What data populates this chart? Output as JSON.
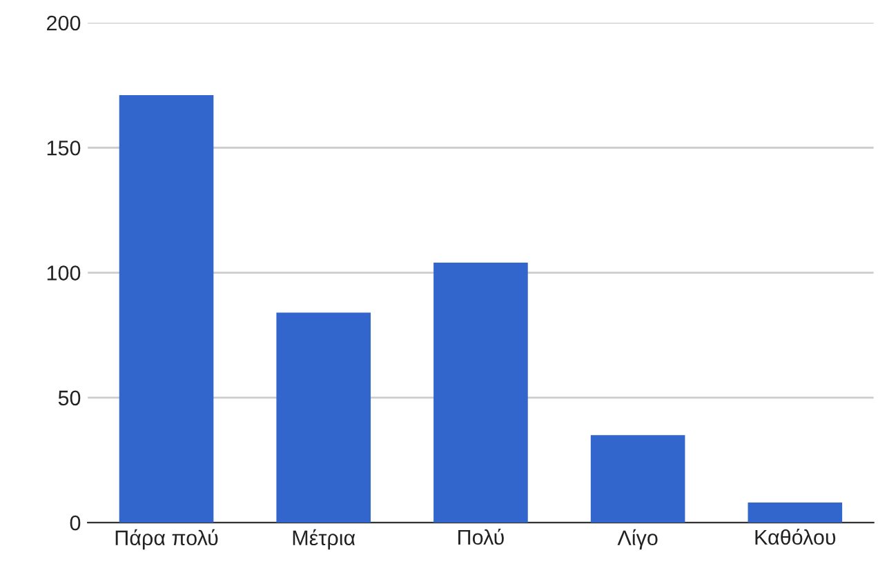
{
  "chart_data": {
    "type": "bar",
    "categories": [
      "Πάρα πολύ",
      "Μέτρια",
      "Πολύ",
      "Λίγο",
      "Καθόλου"
    ],
    "values": [
      171,
      84,
      104,
      35,
      8
    ],
    "color": "#3366cc",
    "ylim": [
      0,
      200
    ],
    "yticks": [
      0,
      50,
      100,
      150,
      200
    ],
    "grid": "y"
  }
}
